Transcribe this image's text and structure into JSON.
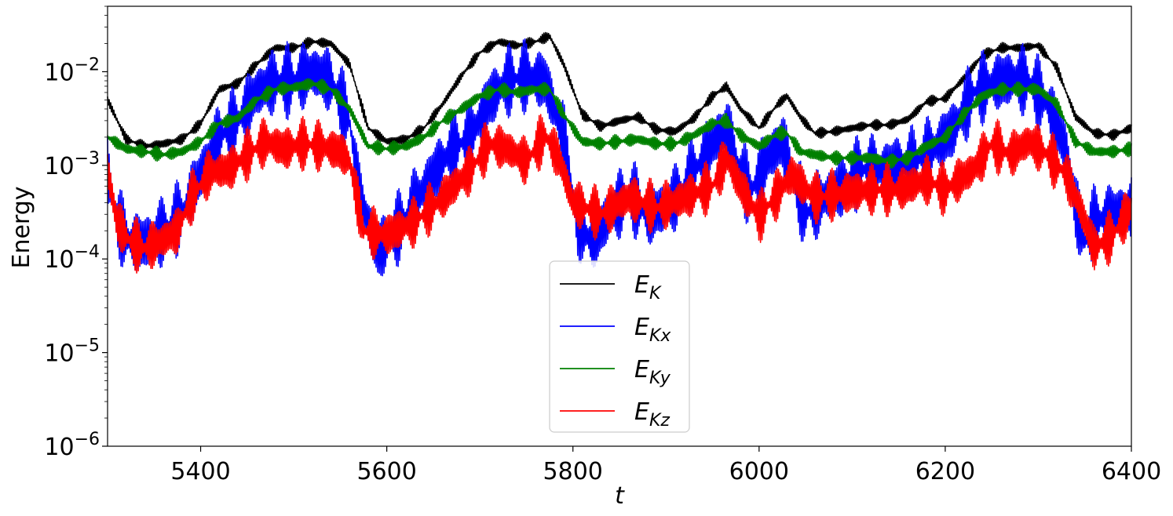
{
  "chart_data": {
    "type": "line",
    "xlabel": "t",
    "ylabel": "Energy",
    "xlim": [
      5300,
      6400
    ],
    "ylim": [
      1e-06,
      0.05
    ],
    "yscale": "log",
    "grid": false,
    "legend_position": "lower center",
    "x_ticks": [
      {
        "value": 5400,
        "label": "5400"
      },
      {
        "value": 5600,
        "label": "5600"
      },
      {
        "value": 5800,
        "label": "5800"
      },
      {
        "value": 6000,
        "label": "6000"
      },
      {
        "value": 6200,
        "label": "6200"
      },
      {
        "value": 6400,
        "label": "6400"
      }
    ],
    "y_ticks": [
      {
        "value": 1e-06,
        "base": "10",
        "exp": "−6"
      },
      {
        "value": 1e-05,
        "base": "10",
        "exp": "−5"
      },
      {
        "value": 0.0001,
        "base": "10",
        "exp": "−4"
      },
      {
        "value": 0.001,
        "base": "10",
        "exp": "−3"
      },
      {
        "value": 0.01,
        "base": "10",
        "exp": "−2"
      }
    ],
    "series": [
      {
        "name": "E_K",
        "label_main": "E",
        "label_sub": "K",
        "color": "#000000",
        "x": [
          5300,
          5320,
          5340,
          5360,
          5380,
          5400,
          5420,
          5440,
          5460,
          5480,
          5500,
          5520,
          5540,
          5560,
          5580,
          5600,
          5620,
          5640,
          5660,
          5680,
          5700,
          5720,
          5740,
          5760,
          5775,
          5790,
          5810,
          5830,
          5850,
          5870,
          5890,
          5910,
          5930,
          5950,
          5965,
          5980,
          6000,
          6020,
          6030,
          6045,
          6060,
          6080,
          6100,
          6120,
          6140,
          6160,
          6180,
          6200,
          6220,
          6240,
          6260,
          6280,
          6300,
          6320,
          6340,
          6360,
          6380,
          6400
        ],
        "y": [
          0.005,
          0.0019,
          0.0016,
          0.0017,
          0.0019,
          0.0028,
          0.0065,
          0.0075,
          0.012,
          0.018,
          0.018,
          0.021,
          0.02,
          0.012,
          0.0025,
          0.0018,
          0.0019,
          0.0025,
          0.0045,
          0.009,
          0.016,
          0.021,
          0.019,
          0.021,
          0.024,
          0.012,
          0.0035,
          0.0026,
          0.003,
          0.0033,
          0.0024,
          0.0023,
          0.0032,
          0.0055,
          0.007,
          0.004,
          0.0025,
          0.0045,
          0.0055,
          0.0032,
          0.0022,
          0.0023,
          0.0025,
          0.0027,
          0.0027,
          0.0031,
          0.0048,
          0.0052,
          0.0085,
          0.015,
          0.018,
          0.018,
          0.019,
          0.011,
          0.0033,
          0.0022,
          0.0021,
          0.0025
        ],
        "noise": 0.06
      },
      {
        "name": "E_Kx",
        "label_main": "E",
        "label_sub": "Kx",
        "color": "#0000ff",
        "x": [
          5300,
          5310,
          5325,
          5340,
          5360,
          5380,
          5400,
          5420,
          5440,
          5460,
          5480,
          5500,
          5520,
          5540,
          5560,
          5570,
          5590,
          5610,
          5630,
          5650,
          5670,
          5690,
          5710,
          5730,
          5750,
          5770,
          5790,
          5805,
          5820,
          5840,
          5860,
          5880,
          5900,
          5920,
          5940,
          5955,
          5965,
          5975,
          5990,
          6010,
          6025,
          6035,
          6050,
          6070,
          6090,
          6110,
          6130,
          6150,
          6170,
          6190,
          6210,
          6230,
          6250,
          6270,
          6290,
          6310,
          6330,
          6340,
          6350,
          6360,
          6380,
          6400
        ],
        "y": [
          0.0009,
          0.00025,
          0.00015,
          0.00015,
          0.0002,
          0.0003,
          0.0008,
          0.002,
          0.003,
          0.006,
          0.008,
          0.008,
          0.01,
          0.008,
          0.003,
          0.0005,
          0.00012,
          0.0002,
          0.0004,
          0.0008,
          0.0015,
          0.002,
          0.005,
          0.008,
          0.009,
          0.008,
          0.002,
          0.00025,
          0.00015,
          0.0003,
          0.0005,
          0.0003,
          0.00035,
          0.0006,
          0.0012,
          0.002,
          0.0025,
          0.0012,
          0.0005,
          0.0012,
          0.0018,
          0.0008,
          0.0003,
          0.00045,
          0.0006,
          0.0009,
          0.0009,
          0.001,
          0.0011,
          0.0016,
          0.0025,
          0.006,
          0.0075,
          0.0085,
          0.008,
          0.0045,
          0.0015,
          0.00035,
          0.00015,
          0.00025,
          0.0003,
          0.00035
        ],
        "noise": 0.42
      },
      {
        "name": "E_Ky",
        "label_main": "E",
        "label_sub": "Ky",
        "color": "#008000",
        "x": [
          5300,
          5320,
          5340,
          5360,
          5380,
          5400,
          5420,
          5440,
          5460,
          5480,
          5500,
          5520,
          5540,
          5560,
          5580,
          5600,
          5620,
          5640,
          5660,
          5680,
          5700,
          5720,
          5740,
          5760,
          5775,
          5790,
          5810,
          5830,
          5850,
          5870,
          5890,
          5910,
          5930,
          5950,
          5965,
          5980,
          6000,
          6020,
          6030,
          6045,
          6060,
          6080,
          6100,
          6120,
          6140,
          6160,
          6180,
          6200,
          6220,
          6240,
          6260,
          6280,
          6300,
          6320,
          6340,
          6360,
          6380,
          6400
        ],
        "y": [
          0.002,
          0.0015,
          0.0014,
          0.0013,
          0.0014,
          0.0018,
          0.0028,
          0.0032,
          0.005,
          0.0065,
          0.0068,
          0.0075,
          0.0065,
          0.004,
          0.0016,
          0.0015,
          0.0016,
          0.002,
          0.003,
          0.004,
          0.0055,
          0.0065,
          0.006,
          0.0065,
          0.0065,
          0.0035,
          0.0018,
          0.0017,
          0.0018,
          0.0019,
          0.0017,
          0.0017,
          0.0021,
          0.0028,
          0.003,
          0.0021,
          0.0016,
          0.0022,
          0.0022,
          0.0014,
          0.0013,
          0.0012,
          0.0012,
          0.0012,
          0.0011,
          0.0012,
          0.0016,
          0.002,
          0.0035,
          0.0055,
          0.0065,
          0.0065,
          0.0065,
          0.0045,
          0.0018,
          0.0014,
          0.0014,
          0.0015
        ],
        "noise": 0.08
      },
      {
        "name": "E_Kz",
        "label_main": "E",
        "label_sub": "Kz",
        "color": "#ff0000",
        "x": [
          5300,
          5310,
          5325,
          5340,
          5360,
          5375,
          5390,
          5410,
          5430,
          5450,
          5470,
          5490,
          5510,
          5530,
          5550,
          5560,
          5575,
          5600,
          5630,
          5660,
          5690,
          5710,
          5730,
          5750,
          5770,
          5785,
          5800,
          5830,
          5860,
          5890,
          5920,
          5950,
          5965,
          5980,
          6000,
          6020,
          6035,
          6060,
          6090,
          6120,
          6150,
          6180,
          6200,
          6230,
          6250,
          6270,
          6290,
          6310,
          6330,
          6345,
          6360,
          6380,
          6400
        ],
        "y": [
          0.0009,
          0.00025,
          0.00015,
          0.00013,
          0.00016,
          0.0002,
          0.00045,
          0.00085,
          0.0009,
          0.0013,
          0.0018,
          0.0015,
          0.0017,
          0.0016,
          0.0014,
          0.0011,
          0.0002,
          0.00018,
          0.00025,
          0.00045,
          0.0009,
          0.0017,
          0.0015,
          0.0011,
          0.0021,
          0.0012,
          0.0004,
          0.0003,
          0.00045,
          0.00035,
          0.00045,
          0.0006,
          0.0012,
          0.0006,
          0.00028,
          0.0005,
          0.0008,
          0.00045,
          0.0005,
          0.00055,
          0.00055,
          0.0007,
          0.00055,
          0.0009,
          0.0017,
          0.0013,
          0.0018,
          0.0013,
          0.0008,
          0.00035,
          0.00013,
          0.00018,
          0.00035
        ],
        "noise": 0.3
      }
    ]
  }
}
